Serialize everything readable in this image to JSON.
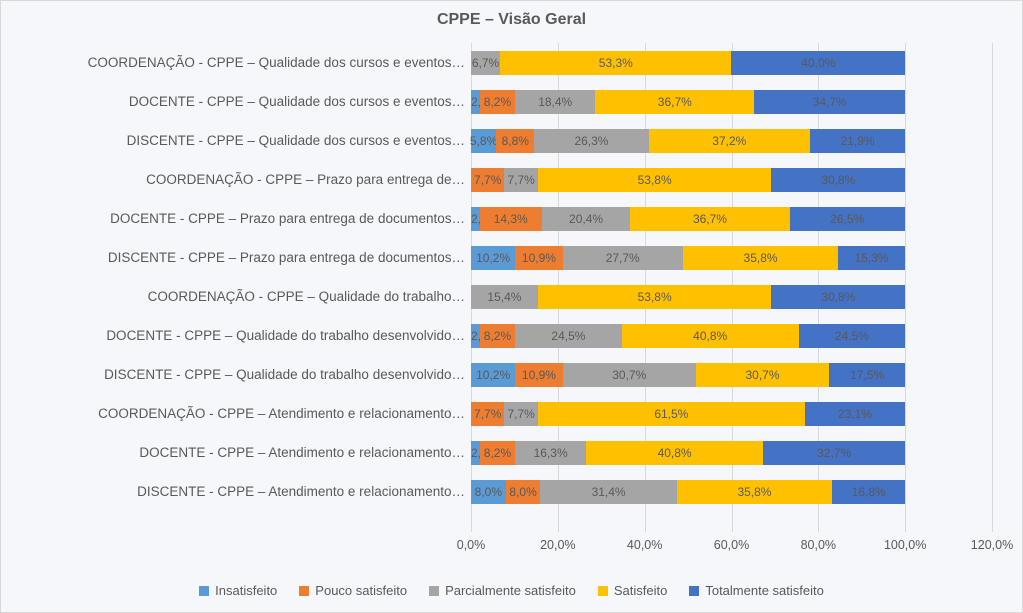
{
  "chart": {
    "type": "stacked-bar-horizontal",
    "title": "CPPE – Visão Geral",
    "title_fontsize": 16,
    "title_color": "#595959",
    "background_color": "#f5f7fa",
    "border_color": "#d9d9d9",
    "label_fontsize": 13.5,
    "value_fontsize": 12,
    "label_color": "#595959",
    "xlim_max": 120.0,
    "grid_color": "#d9d9d9",
    "xticks": [
      {
        "v": 0.0,
        "label": "0,0%"
      },
      {
        "v": 20.0,
        "label": "20,0%"
      },
      {
        "v": 40.0,
        "label": "40,0%"
      },
      {
        "v": 60.0,
        "label": "60,0%"
      },
      {
        "v": 80.0,
        "label": "80,0%"
      },
      {
        "v": 100.0,
        "label": "100,0%"
      },
      {
        "v": 120.0,
        "label": "120,0%"
      }
    ],
    "series": [
      {
        "key": "insatisfeito",
        "label": "Insatisfeito",
        "color": "#5b9bd5"
      },
      {
        "key": "pouco_satisfeito",
        "label": "Pouco satisfeito",
        "color": "#ed7d31"
      },
      {
        "key": "parcialmente",
        "label": "Parcialmente satisfeito",
        "color": "#a5a5a5"
      },
      {
        "key": "satisfeito",
        "label": "Satisfeito",
        "color": "#ffc000"
      },
      {
        "key": "totalmente",
        "label": "Totalmente satisfeito",
        "color": "#4472c4"
      }
    ],
    "rows": [
      {
        "label": "COORDENAÇÃO - CPPE – Qualidade dos cursos e eventos…",
        "values": {
          "insatisfeito": 0.0,
          "pouco_satisfeito": 0.0,
          "parcialmente": 6.7,
          "satisfeito": 53.3,
          "totalmente": 40.0
        },
        "labels": {
          "insatisfeito": "0,0%",
          "pouco_satisfeito": "0,0%",
          "parcialmente": "6,7%",
          "satisfeito": "53,3%",
          "totalmente": "40,0%"
        }
      },
      {
        "label": "DOCENTE - CPPE – Qualidade dos cursos e eventos…",
        "values": {
          "insatisfeito": 2.0,
          "pouco_satisfeito": 8.2,
          "parcialmente": 18.4,
          "satisfeito": 36.7,
          "totalmente": 34.7
        },
        "labels": {
          "insatisfeito": "2,0%",
          "pouco_satisfeito": "8,2%",
          "parcialmente": "18,4%",
          "satisfeito": "36,7%",
          "totalmente": "34,7%"
        }
      },
      {
        "label": "DISCENTE - CPPE – Qualidade dos cursos e eventos…",
        "values": {
          "insatisfeito": 5.8,
          "pouco_satisfeito": 8.8,
          "parcialmente": 26.3,
          "satisfeito": 37.2,
          "totalmente": 21.9
        },
        "labels": {
          "insatisfeito": "5,8%",
          "pouco_satisfeito": "8,8%",
          "parcialmente": "26,3%",
          "satisfeito": "37,2%",
          "totalmente": "21,9%"
        }
      },
      {
        "label": "COORDENAÇÃO - CPPE – Prazo para entrega de…",
        "values": {
          "insatisfeito": 0.0,
          "pouco_satisfeito": 7.7,
          "parcialmente": 7.7,
          "satisfeito": 53.8,
          "totalmente": 30.8
        },
        "labels": {
          "insatisfeito": "0,0%",
          "pouco_satisfeito": "7,7%",
          "parcialmente": "7,7%",
          "satisfeito": "53,8%",
          "totalmente": "30,8%"
        }
      },
      {
        "label": "DOCENTE - CPPE – Prazo para entrega de documentos…",
        "values": {
          "insatisfeito": 2.0,
          "pouco_satisfeito": 14.3,
          "parcialmente": 20.4,
          "satisfeito": 36.7,
          "totalmente": 26.5
        },
        "labels": {
          "insatisfeito": "2,0%",
          "pouco_satisfeito": "14,3%",
          "parcialmente": "20,4%",
          "satisfeito": "36,7%",
          "totalmente": "26,5%"
        }
      },
      {
        "label": "DISCENTE - CPPE – Prazo para entrega de documentos…",
        "values": {
          "insatisfeito": 10.2,
          "pouco_satisfeito": 10.9,
          "parcialmente": 27.7,
          "satisfeito": 35.8,
          "totalmente": 15.3
        },
        "labels": {
          "insatisfeito": "10,2%",
          "pouco_satisfeito": "10,9%",
          "parcialmente": "27,7%",
          "satisfeito": "35,8%",
          "totalmente": "15,3%"
        }
      },
      {
        "label": "COORDENAÇÃO - CPPE – Qualidade do trabalho…",
        "values": {
          "insatisfeito": 0.0,
          "pouco_satisfeito": 0.0,
          "parcialmente": 15.4,
          "satisfeito": 53.8,
          "totalmente": 30.8
        },
        "labels": {
          "insatisfeito": "0,0%",
          "pouco_satisfeito": "0,0%",
          "parcialmente": "15,4%",
          "satisfeito": "53,8%",
          "totalmente": "30,8%"
        }
      },
      {
        "label": "DOCENTE - CPPE – Qualidade do trabalho desenvolvido…",
        "values": {
          "insatisfeito": 2.0,
          "pouco_satisfeito": 8.2,
          "parcialmente": 24.5,
          "satisfeito": 40.8,
          "totalmente": 24.5
        },
        "labels": {
          "insatisfeito": "2,0%",
          "pouco_satisfeito": "8,2%",
          "parcialmente": "24,5%",
          "satisfeito": "40,8%",
          "totalmente": "24,5%"
        }
      },
      {
        "label": "DISCENTE - CPPE – Qualidade do trabalho desenvolvido…",
        "values": {
          "insatisfeito": 10.2,
          "pouco_satisfeito": 10.9,
          "parcialmente": 30.7,
          "satisfeito": 30.7,
          "totalmente": 17.5
        },
        "labels": {
          "insatisfeito": "10,2%",
          "pouco_satisfeito": "10,9%",
          "parcialmente": "30,7%",
          "satisfeito": "30,7%",
          "totalmente": "17,5%"
        }
      },
      {
        "label": "COORDENAÇÃO - CPPE – Atendimento e relacionamento…",
        "values": {
          "insatisfeito": 0.0,
          "pouco_satisfeito": 7.7,
          "parcialmente": 7.7,
          "satisfeito": 61.5,
          "totalmente": 23.1
        },
        "labels": {
          "insatisfeito": "0,0%",
          "pouco_satisfeito": "7,7%",
          "parcialmente": "7,7%",
          "satisfeito": "61,5%",
          "totalmente": "23,1%"
        }
      },
      {
        "label": "DOCENTE - CPPE – Atendimento e relacionamento…",
        "values": {
          "insatisfeito": 2.0,
          "pouco_satisfeito": 8.2,
          "parcialmente": 16.3,
          "satisfeito": 40.8,
          "totalmente": 32.7
        },
        "labels": {
          "insatisfeito": "2,0%",
          "pouco_satisfeito": "8,2%",
          "parcialmente": "16,3%",
          "satisfeito": "40,8%",
          "totalmente": "32,7%"
        }
      },
      {
        "label": "DISCENTE - CPPE – Atendimento e relacionamento…",
        "values": {
          "insatisfeito": 8.0,
          "pouco_satisfeito": 8.0,
          "parcialmente": 31.4,
          "satisfeito": 35.8,
          "totalmente": 16.8
        },
        "labels": {
          "insatisfeito": "8,0%",
          "pouco_satisfeito": "8,0%",
          "parcialmente": "31,4%",
          "satisfeito": "35,8%",
          "totalmente": "16,8%"
        }
      }
    ]
  }
}
